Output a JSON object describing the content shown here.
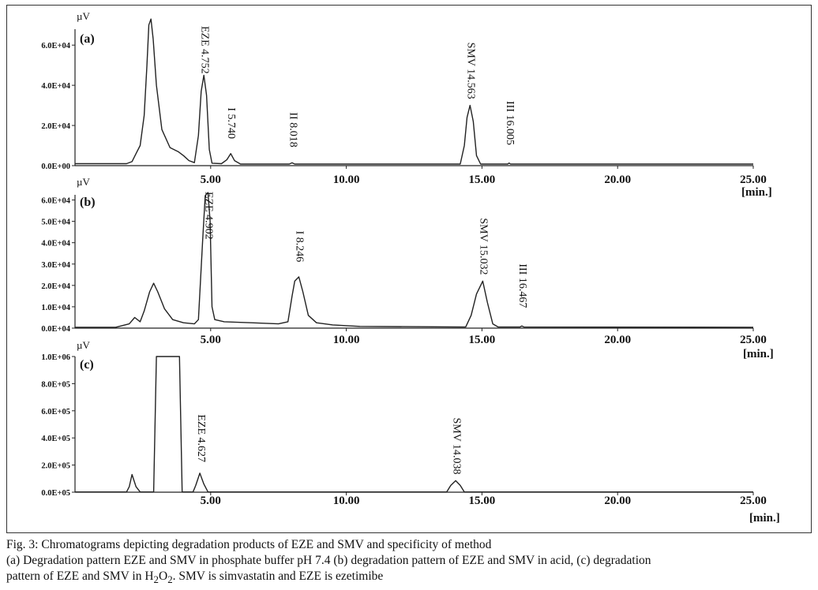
{
  "chart_data": [
    {
      "type": "line",
      "panel_label": "(a)",
      "y_unit": "µV",
      "x_unit": "[min.]",
      "xlim": [
        0,
        25
      ],
      "ylim": [
        0,
        75000
      ],
      "x_ticks": [
        "5.00",
        "10.00",
        "15.00",
        "20.00",
        "25.00"
      ],
      "y_ticks": [
        {
          "value": 0,
          "label": "0.0E+00"
        },
        {
          "value": 20000,
          "label": "2.0E+04"
        },
        {
          "value": 40000,
          "label": "4.0E+04"
        },
        {
          "value": 60000,
          "label": "6.0E+04"
        }
      ],
      "peaks": [
        {
          "label": "EZE 4.752",
          "rt": 4.752,
          "height": 45000
        },
        {
          "label": "I 5.740",
          "rt": 5.74,
          "height": 6000
        },
        {
          "label": "II 8.018",
          "rt": 8.018,
          "height": 800
        },
        {
          "label": "SMV 14.563",
          "rt": 14.563,
          "height": 30000
        },
        {
          "label": "III 16.005",
          "rt": 16.005,
          "height": 800
        }
      ],
      "trace": [
        [
          0,
          1000
        ],
        [
          1.9,
          1000
        ],
        [
          2.1,
          2000
        ],
        [
          2.25,
          6000
        ],
        [
          2.4,
          10000
        ],
        [
          2.55,
          25000
        ],
        [
          2.65,
          50000
        ],
        [
          2.72,
          70000
        ],
        [
          2.8,
          73000
        ],
        [
          2.88,
          63000
        ],
        [
          3.0,
          40000
        ],
        [
          3.2,
          18000
        ],
        [
          3.5,
          9000
        ],
        [
          3.8,
          7000
        ],
        [
          4.0,
          5000
        ],
        [
          4.2,
          2500
        ],
        [
          4.4,
          1500
        ],
        [
          4.55,
          15000
        ],
        [
          4.65,
          37000
        ],
        [
          4.75,
          45000
        ],
        [
          4.85,
          35000
        ],
        [
          4.95,
          8000
        ],
        [
          5.05,
          1200
        ],
        [
          5.4,
          1000
        ],
        [
          5.6,
          3000
        ],
        [
          5.74,
          6000
        ],
        [
          5.88,
          2500
        ],
        [
          6.1,
          800
        ],
        [
          7.9,
          800
        ],
        [
          8.0,
          1400
        ],
        [
          8.1,
          800
        ],
        [
          14.2,
          800
        ],
        [
          14.35,
          10000
        ],
        [
          14.45,
          24000
        ],
        [
          14.56,
          30000
        ],
        [
          14.68,
          22000
        ],
        [
          14.8,
          5000
        ],
        [
          14.95,
          800
        ],
        [
          15.95,
          800
        ],
        [
          16.0,
          1300
        ],
        [
          16.05,
          800
        ],
        [
          25,
          800
        ]
      ]
    },
    {
      "type": "line",
      "panel_label": "(b)",
      "y_unit": "µV",
      "x_unit": "[min.]",
      "xlim": [
        0,
        25
      ],
      "ylim": [
        0,
        65000
      ],
      "x_ticks": [
        "5.00",
        "10.00",
        "15.00",
        "20.00",
        "25.00"
      ],
      "y_ticks": [
        {
          "value": 0,
          "label": "0.0E+04"
        },
        {
          "value": 10000,
          "label": "1.0E+04"
        },
        {
          "value": 20000,
          "label": "2.0E+04"
        },
        {
          "value": 30000,
          "label": "3.0E+04"
        },
        {
          "value": 40000,
          "label": "4.0E+04"
        },
        {
          "value": 50000,
          "label": "5.0E+04"
        },
        {
          "value": 60000,
          "label": "6.0E+04"
        }
      ],
      "peaks": [
        {
          "label": "EZE 4.902",
          "rt": 4.902,
          "height": 63000
        },
        {
          "label": "I 8.246",
          "rt": 8.246,
          "height": 24000
        },
        {
          "label": "SMV 15.032",
          "rt": 15.032,
          "height": 22000
        },
        {
          "label": "III 16.467",
          "rt": 16.467,
          "height": 600
        }
      ],
      "trace": [
        [
          0,
          400
        ],
        [
          1.5,
          400
        ],
        [
          2.0,
          2000
        ],
        [
          2.2,
          5000
        ],
        [
          2.4,
          3000
        ],
        [
          2.55,
          8000
        ],
        [
          2.75,
          17000
        ],
        [
          2.9,
          21000
        ],
        [
          3.05,
          17000
        ],
        [
          3.3,
          9000
        ],
        [
          3.6,
          4000
        ],
        [
          4.0,
          2500
        ],
        [
          4.4,
          2000
        ],
        [
          4.55,
          4000
        ],
        [
          4.7,
          40000
        ],
        [
          4.8,
          62000
        ],
        [
          4.9,
          63500
        ],
        [
          4.98,
          50000
        ],
        [
          5.05,
          10000
        ],
        [
          5.15,
          4000
        ],
        [
          5.5,
          3000
        ],
        [
          6.5,
          2500
        ],
        [
          7.5,
          2000
        ],
        [
          7.85,
          3000
        ],
        [
          8.0,
          15000
        ],
        [
          8.1,
          22000
        ],
        [
          8.25,
          24000
        ],
        [
          8.4,
          17000
        ],
        [
          8.6,
          6000
        ],
        [
          8.9,
          2500
        ],
        [
          9.5,
          1500
        ],
        [
          10.5,
          800
        ],
        [
          14.4,
          500
        ],
        [
          14.6,
          6000
        ],
        [
          14.8,
          16000
        ],
        [
          15.03,
          22000
        ],
        [
          15.2,
          12000
        ],
        [
          15.4,
          2000
        ],
        [
          15.6,
          500
        ],
        [
          16.4,
          500
        ],
        [
          16.47,
          1000
        ],
        [
          16.55,
          500
        ],
        [
          25,
          400
        ]
      ]
    },
    {
      "type": "line",
      "panel_label": "(c)",
      "y_unit": "µV",
      "x_unit": "[min.]",
      "xlim": [
        0,
        25
      ],
      "ylim": [
        0,
        1000000
      ],
      "x_ticks": [
        "5.00",
        "10.00",
        "15.00",
        "20.00",
        "25.00"
      ],
      "y_ticks": [
        {
          "value": 0,
          "label": "0.0E+05"
        },
        {
          "value": 200000,
          "label": "2.0E+05"
        },
        {
          "value": 400000,
          "label": "4.0E+05"
        },
        {
          "value": 600000,
          "label": "6.0E+05"
        },
        {
          "value": 800000,
          "label": "8.0E+05"
        },
        {
          "value": 1000000,
          "label": "1.0E+06"
        }
      ],
      "peaks": [
        {
          "label": "EZE 4.627",
          "rt": 4.627,
          "height": 150000
        },
        {
          "label": "SMV 14.038",
          "rt": 14.038,
          "height": 85000
        }
      ],
      "trace": [
        [
          0,
          2000
        ],
        [
          1.9,
          2000
        ],
        [
          2.0,
          40000
        ],
        [
          2.1,
          130000
        ],
        [
          2.25,
          40000
        ],
        [
          2.4,
          2000
        ],
        [
          2.9,
          2000
        ],
        [
          3.0,
          1000000
        ],
        [
          3.85,
          1000000
        ],
        [
          3.95,
          2000
        ],
        [
          4.35,
          2000
        ],
        [
          4.45,
          50000
        ],
        [
          4.6,
          140000
        ],
        [
          4.75,
          60000
        ],
        [
          4.9,
          2000
        ],
        [
          13.7,
          2000
        ],
        [
          13.85,
          50000
        ],
        [
          14.03,
          85000
        ],
        [
          14.2,
          50000
        ],
        [
          14.35,
          2000
        ],
        [
          25,
          2000
        ]
      ]
    }
  ],
  "caption": {
    "line1": "Fig. 3: Chromatograms depicting degradation products of EZE and SMV and specificity of method",
    "line2": "(a) Degradation pattern EZE and SMV in phosphate buffer pH 7.4 (b) degradation pattern of EZE and SMV in acid, (c) degradation",
    "line3_before": "pattern of EZE and SMV in H",
    "line3_sub1": "2",
    "line3_mid": "O",
    "line3_sub2": "2",
    "line3_after": ". SMV is simvastatin and EZE is ezetimibe"
  }
}
